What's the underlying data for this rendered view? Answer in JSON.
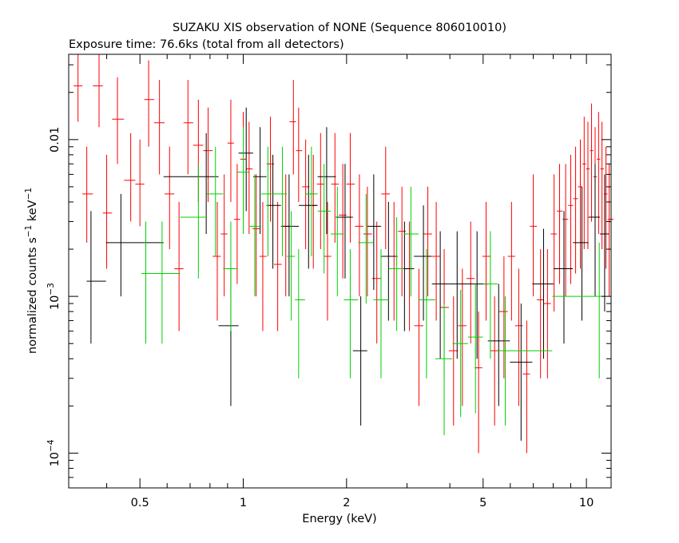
{
  "chart_data": {
    "type": "scatter",
    "title": "SUZAKU XIS observation of NONE (Sequence 806010010)",
    "subtitle": "Exposure time: 76.6ks (total from all detectors)",
    "xlabel": "Energy (keV)",
    "ylabel_main": "normalized counts s",
    "ylabel_sup1": "−1",
    "ylabel_mid": " keV",
    "ylabel_sup2": "−1",
    "x_scale": "log",
    "y_scale": "log",
    "xlim": [
      0.31,
      11.8
    ],
    "ylim": [
      6e-05,
      0.035
    ],
    "x_ticks": [
      {
        "v": 0.5,
        "label": "0.5"
      },
      {
        "v": 1,
        "label": "1"
      },
      {
        "v": 2,
        "label": "2"
      },
      {
        "v": 5,
        "label": "5"
      },
      {
        "v": 10,
        "label": "10"
      }
    ],
    "y_ticks": [
      {
        "v": 0.0001,
        "base": "10",
        "exp": "−4"
      },
      {
        "v": 0.001,
        "base": "10",
        "exp": "−3"
      },
      {
        "v": 0.01,
        "base": "0.01",
        "exp": ""
      }
    ],
    "grid": false,
    "series": [
      {
        "color": "#ff0000",
        "points": [
          [
            0.33,
            0.022,
            0.013,
            0.04
          ],
          [
            0.35,
            0.0045,
            0.0022,
            0.009
          ],
          [
            0.38,
            0.022,
            0.012,
            0.04
          ],
          [
            0.4,
            0.0034,
            0.0015,
            0.008
          ],
          [
            0.43,
            0.0135,
            0.007,
            0.025
          ],
          [
            0.47,
            0.0055,
            0.003,
            0.011
          ],
          [
            0.5,
            0.0052,
            0.0028,
            0.01
          ],
          [
            0.53,
            0.018,
            0.009,
            0.032
          ],
          [
            0.57,
            0.0128,
            0.006,
            0.024
          ],
          [
            0.61,
            0.0045,
            0.002,
            0.009
          ],
          [
            0.65,
            0.0015,
            0.0006,
            0.004
          ],
          [
            0.69,
            0.0128,
            0.006,
            0.024
          ],
          [
            0.74,
            0.0092,
            0.004,
            0.018
          ],
          [
            0.79,
            0.0085,
            0.004,
            0.016
          ],
          [
            0.84,
            0.0018,
            0.0007,
            0.004
          ],
          [
            0.88,
            0.0025,
            0.001,
            0.006
          ],
          [
            0.92,
            0.0095,
            0.004,
            0.018
          ],
          [
            0.96,
            0.0031,
            0.0012,
            0.007
          ],
          [
            1.0,
            0.0075,
            0.003,
            0.015
          ],
          [
            1.04,
            0.0065,
            0.0025,
            0.013
          ],
          [
            1.09,
            0.0027,
            0.001,
            0.006
          ],
          [
            1.14,
            0.0018,
            0.0006,
            0.004
          ],
          [
            1.2,
            0.007,
            0.003,
            0.014
          ],
          [
            1.26,
            0.0016,
            0.0006,
            0.004
          ],
          [
            1.33,
            0.0028,
            0.001,
            0.006
          ],
          [
            1.4,
            0.013,
            0.006,
            0.024
          ],
          [
            1.45,
            0.0085,
            0.004,
            0.016
          ],
          [
            1.52,
            0.005,
            0.002,
            0.01
          ],
          [
            1.6,
            0.0038,
            0.0015,
            0.008
          ],
          [
            1.68,
            0.0052,
            0.002,
            0.011
          ],
          [
            1.76,
            0.0018,
            0.0007,
            0.004
          ],
          [
            1.85,
            0.0052,
            0.0022,
            0.011
          ],
          [
            1.95,
            0.0033,
            0.0013,
            0.007
          ],
          [
            2.05,
            0.0052,
            0.0022,
            0.011
          ],
          [
            2.18,
            0.0028,
            0.001,
            0.006
          ],
          [
            2.3,
            0.0025,
            0.001,
            0.005
          ],
          [
            2.45,
            0.0013,
            0.0005,
            0.003
          ],
          [
            2.6,
            0.0045,
            0.002,
            0.009
          ],
          [
            2.75,
            0.0018,
            0.0007,
            0.004
          ],
          [
            2.9,
            0.0026,
            0.001,
            0.005
          ],
          [
            3.05,
            0.0015,
            0.0006,
            0.003
          ],
          [
            3.25,
            0.00065,
            0.0002,
            0.0015
          ],
          [
            3.45,
            0.0025,
            0.001,
            0.005
          ],
          [
            3.65,
            0.0018,
            0.0007,
            0.004
          ],
          [
            3.85,
            0.00085,
            0.0003,
            0.002
          ],
          [
            4.1,
            0.00045,
            0.00015,
            0.001
          ],
          [
            4.35,
            0.00065,
            0.0002,
            0.0015
          ],
          [
            4.6,
            0.0013,
            0.0005,
            0.003
          ],
          [
            4.85,
            0.00035,
            0.0001,
            0.0008
          ],
          [
            5.1,
            0.0018,
            0.0007,
            0.004
          ],
          [
            5.4,
            0.00045,
            0.00015,
            0.001
          ],
          [
            5.75,
            0.0008,
            0.0003,
            0.0018
          ],
          [
            6.05,
            0.0018,
            0.0007,
            0.004
          ],
          [
            6.35,
            0.00065,
            0.0002,
            0.0015
          ],
          [
            6.7,
            0.00032,
            0.0001,
            0.0007
          ],
          [
            7.0,
            0.0028,
            0.001,
            0.006
          ],
          [
            7.35,
            0.00095,
            0.0003,
            0.002
          ],
          [
            7.7,
            0.0009,
            0.0003,
            0.002
          ],
          [
            8.05,
            0.0025,
            0.0008,
            0.006
          ],
          [
            8.35,
            0.0035,
            0.0012,
            0.007
          ],
          [
            8.7,
            0.0031,
            0.001,
            0.007
          ],
          [
            9.0,
            0.0038,
            0.0012,
            0.008
          ],
          [
            9.3,
            0.0042,
            0.0014,
            0.009
          ],
          [
            9.6,
            0.005,
            0.0015,
            0.01
          ],
          [
            9.85,
            0.007,
            0.002,
            0.014
          ],
          [
            10.1,
            0.0065,
            0.002,
            0.013
          ],
          [
            10.35,
            0.0085,
            0.003,
            0.017
          ],
          [
            10.6,
            0.0058,
            0.002,
            0.012
          ],
          [
            10.85,
            0.0075,
            0.0025,
            0.015
          ],
          [
            11.1,
            0.0065,
            0.002,
            0.013
          ],
          [
            11.4,
            0.0045,
            0.0015,
            0.009
          ],
          [
            11.65,
            0.0031,
            0.001,
            0.007
          ]
        ]
      },
      {
        "color": "#000000",
        "points": [
          [
            0.36,
            0.00125,
            0.0005,
            0.0035
          ],
          [
            0.44,
            0.0022,
            0.001,
            0.0045
          ],
          [
            0.78,
            0.0058,
            0.0025,
            0.011
          ],
          [
            0.92,
            0.00065,
            0.0002,
            0.0015
          ],
          [
            1.02,
            0.0082,
            0.0035,
            0.016
          ],
          [
            1.12,
            0.0058,
            0.0025,
            0.012
          ],
          [
            1.22,
            0.0038,
            0.0015,
            0.008
          ],
          [
            1.36,
            0.0028,
            0.001,
            0.006
          ],
          [
            1.55,
            0.0038,
            0.0015,
            0.008
          ],
          [
            1.75,
            0.0058,
            0.0025,
            0.012
          ],
          [
            1.98,
            0.0032,
            0.0013,
            0.007
          ],
          [
            2.2,
            0.00045,
            0.00015,
            0.001
          ],
          [
            2.4,
            0.0028,
            0.0011,
            0.006
          ],
          [
            2.65,
            0.0018,
            0.0007,
            0.004
          ],
          [
            2.95,
            0.0015,
            0.0006,
            0.003
          ],
          [
            3.35,
            0.0018,
            0.0007,
            0.0038
          ],
          [
            3.75,
            0.0012,
            0.0004,
            0.0026
          ],
          [
            4.2,
            0.0012,
            0.0004,
            0.0026
          ],
          [
            4.8,
            0.0012,
            0.0004,
            0.0026
          ],
          [
            5.55,
            0.00052,
            0.0002,
            0.0012
          ],
          [
            6.45,
            0.00038,
            0.00012,
            0.0009
          ],
          [
            7.5,
            0.0012,
            0.0004,
            0.0027
          ],
          [
            8.6,
            0.0015,
            0.0005,
            0.0035
          ],
          [
            9.7,
            0.0022,
            0.0007,
            0.005
          ],
          [
            10.6,
            0.0032,
            0.001,
            0.007
          ],
          [
            11.3,
            0.0025,
            0.0008,
            0.006
          ]
        ]
      },
      {
        "color": "#00d000",
        "points": [
          [
            0.52,
            0.0014,
            0.0005,
            0.003
          ],
          [
            0.58,
            0.0014,
            0.0005,
            0.003
          ],
          [
            0.74,
            0.0032,
            0.0013,
            0.007
          ],
          [
            0.83,
            0.0045,
            0.0018,
            0.009
          ],
          [
            0.92,
            0.0015,
            0.0006,
            0.003
          ],
          [
            1.0,
            0.0062,
            0.0025,
            0.012
          ],
          [
            1.08,
            0.0028,
            0.001,
            0.006
          ],
          [
            1.18,
            0.0045,
            0.0018,
            0.009
          ],
          [
            1.3,
            0.0045,
            0.0018,
            0.009
          ],
          [
            1.38,
            0.0018,
            0.0007,
            0.0035
          ],
          [
            1.45,
            0.00095,
            0.0003,
            0.002
          ],
          [
            1.58,
            0.0045,
            0.0018,
            0.009
          ],
          [
            1.72,
            0.0035,
            0.0014,
            0.007
          ],
          [
            1.88,
            0.0025,
            0.001,
            0.005
          ],
          [
            2.05,
            0.00095,
            0.0003,
            0.002
          ],
          [
            2.28,
            0.0022,
            0.0009,
            0.0045
          ],
          [
            2.52,
            0.00095,
            0.0003,
            0.002
          ],
          [
            2.8,
            0.0015,
            0.0006,
            0.0032
          ],
          [
            3.08,
            0.0025,
            0.001,
            0.005
          ],
          [
            3.42,
            0.00095,
            0.0003,
            0.002
          ],
          [
            3.85,
            0.0004,
            0.00013,
            0.0009
          ],
          [
            4.3,
            0.0005,
            0.00017,
            0.0011
          ],
          [
            4.75,
            0.00055,
            0.00018,
            0.0012
          ],
          [
            5.25,
            0.0012,
            0.0004,
            0.0026
          ],
          [
            5.8,
            0.00045,
            0.00015,
            0.001
          ],
          [
            10.9,
            0.001,
            0.0003,
            0.0022
          ]
        ]
      }
    ]
  }
}
